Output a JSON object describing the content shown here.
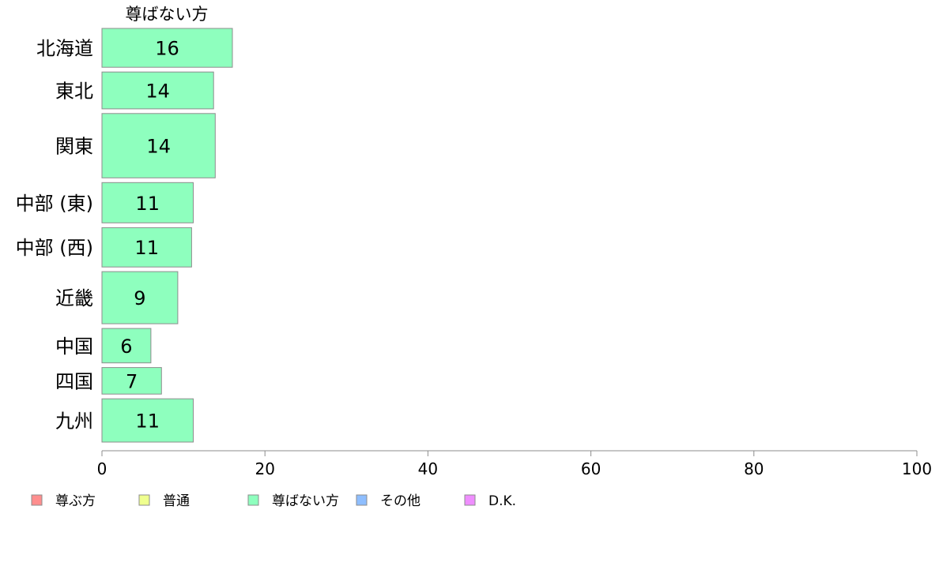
{
  "chart_data": {
    "type": "bar",
    "orientation": "horizontal",
    "categories": [
      "北海道",
      "東北",
      "関東",
      "中部 (東)",
      "中部 (西)",
      "近畿",
      "中国",
      "四国",
      "九州"
    ],
    "category_weights": [
      0.79,
      0.75,
      1.31,
      0.82,
      0.8,
      1.06,
      0.7,
      0.54,
      0.88
    ],
    "series": [
      {
        "name": "尊ばない方",
        "color": "#8effbe",
        "values": [
          16,
          13.7,
          13.9,
          11.2,
          11,
          9.3,
          6,
          7.3,
          11.2
        ],
        "labels": [
          "16",
          "14",
          "14",
          "11",
          "11",
          "9",
          "6",
          "7",
          "11"
        ]
      }
    ],
    "xlim": [
      0,
      100
    ],
    "xticks": [
      "0",
      "20",
      "40",
      "60",
      "80",
      "100"
    ],
    "xtick_values": [
      0,
      20,
      40,
      60,
      80,
      100
    ],
    "legend_placement": "bottom",
    "legend": [
      {
        "label": "尊ぶ方",
        "color": "#ff8e8e"
      },
      {
        "label": "普通",
        "color": "#efff8e"
      },
      {
        "label": "尊ばない方",
        "color": "#8effbe"
      },
      {
        "label": "その他",
        "color": "#8ebeff"
      },
      {
        "label": "D.K.",
        "color": "#ef8eff"
      }
    ],
    "grid": false
  }
}
